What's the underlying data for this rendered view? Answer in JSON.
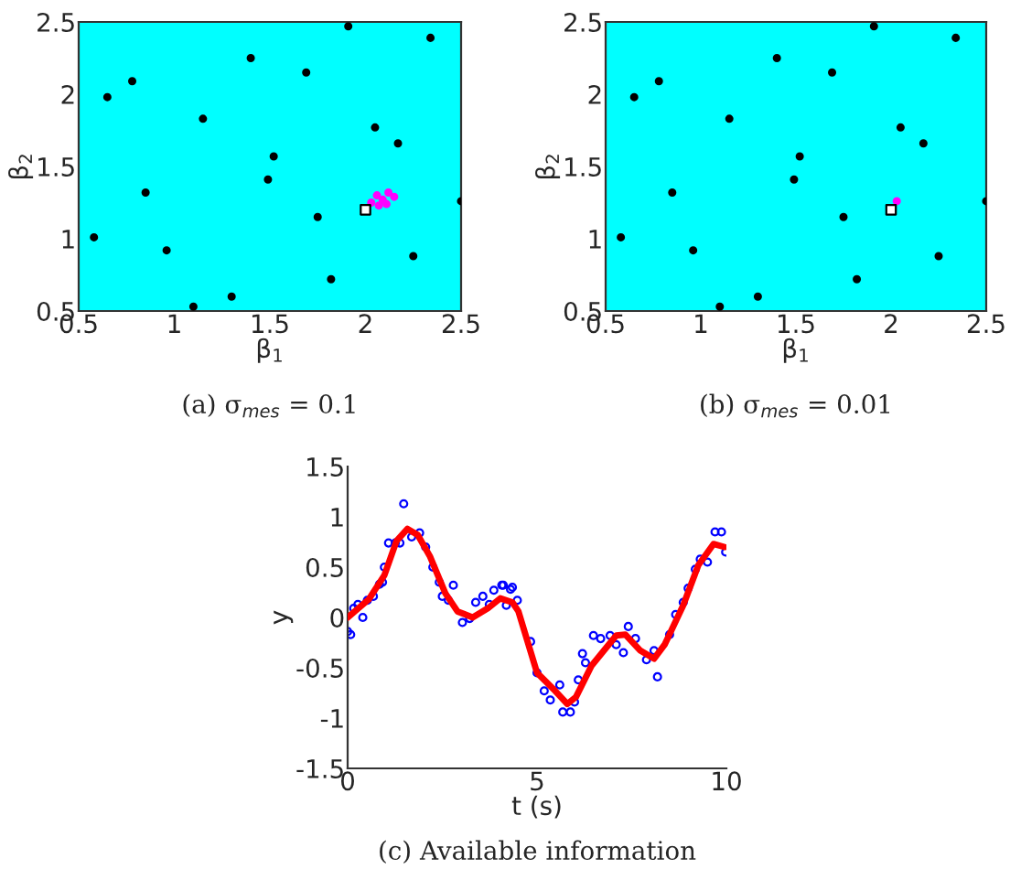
{
  "chart_data": [
    {
      "type": "scatter",
      "xlabel": "β$_{1}$",
      "ylabel": "β$_{2}$",
      "annotations": [
        "(a) σ$_{mes}$ = 0.1"
      ],
      "xlim": [
        0.5,
        2.5
      ],
      "ylim": [
        0.5,
        2.5
      ],
      "xticks": [
        0.5,
        1,
        1.5,
        2,
        2.5
      ],
      "yticks": [
        0.5,
        1,
        1.5,
        2,
        2.5
      ],
      "grid": false,
      "legend": false,
      "series": [
        {
          "color": "#000000",
          "marker": "circle",
          "x": [
            0.58,
            0.65,
            0.78,
            0.85,
            0.96,
            1.1,
            1.15,
            1.3,
            1.4,
            1.49,
            1.52,
            1.69,
            1.75,
            1.82,
            1.91,
            2.05,
            2.17,
            2.25,
            2.34,
            2.5
          ],
          "values": [
            1.01,
            1.98,
            2.09,
            1.32,
            0.92,
            0.53,
            1.83,
            0.6,
            2.25,
            1.41,
            1.57,
            2.15,
            1.15,
            0.72,
            2.47,
            1.77,
            1.66,
            0.88,
            2.39,
            1.26
          ]
        },
        {
          "color": "#ff00ff",
          "marker": "circle",
          "x": [
            2.03,
            2.06,
            2.09,
            2.12,
            2.15,
            2.07,
            2.11
          ],
          "values": [
            1.25,
            1.3,
            1.27,
            1.32,
            1.29,
            1.23,
            1.24
          ]
        },
        {
          "color": "#ffffff",
          "marker": "square",
          "x": [
            2.0
          ],
          "values": [
            1.2
          ]
        }
      ]
    },
    {
      "type": "scatter",
      "xlabel": "β$_{1}$",
      "ylabel": "β$_{2}$",
      "annotations": [
        "(b) σ$_{mes}$ = 0.01"
      ],
      "xlim": [
        0.5,
        2.5
      ],
      "ylim": [
        0.5,
        2.5
      ],
      "xticks": [
        0.5,
        1,
        1.5,
        2,
        2.5
      ],
      "yticks": [
        0.5,
        1,
        1.5,
        2,
        2.5
      ],
      "grid": false,
      "legend": false,
      "series": [
        {
          "color": "#000000",
          "marker": "circle",
          "x": [
            0.58,
            0.65,
            0.78,
            0.85,
            0.96,
            1.1,
            1.15,
            1.3,
            1.4,
            1.49,
            1.52,
            1.69,
            1.75,
            1.82,
            1.91,
            2.05,
            2.17,
            2.25,
            2.34,
            2.5
          ],
          "values": [
            1.01,
            1.98,
            2.09,
            1.32,
            0.92,
            0.53,
            1.83,
            0.6,
            2.25,
            1.41,
            1.57,
            2.15,
            1.15,
            0.72,
            2.47,
            1.77,
            1.66,
            0.88,
            2.39,
            1.26
          ]
        },
        {
          "color": "#ff00ff",
          "marker": "circle",
          "x": [
            2.03
          ],
          "values": [
            1.26
          ]
        },
        {
          "color": "#ffffff",
          "marker": "square",
          "x": [
            2.0
          ],
          "values": [
            1.2
          ]
        }
      ]
    },
    {
      "type": "line",
      "xlabel": "t (s)",
      "ylabel": "y",
      "annotations": [
        "(c) Available information"
      ],
      "xlim": [
        0,
        10
      ],
      "ylim": [
        -1.5,
        1.5
      ],
      "xticks": [
        0,
        5,
        10
      ],
      "yticks": [
        -1.5,
        -1,
        -0.5,
        0,
        0.5,
        1,
        1.5
      ],
      "grid": false,
      "legend": false,
      "series": [
        {
          "type": "scatter",
          "color": "#0000ff",
          "marker": "circle",
          "x": [
            0.0,
            0.08,
            0.16,
            0.27,
            0.4,
            0.52,
            0.68,
            0.84,
            0.92,
            0.97,
            1.08,
            1.26,
            1.38,
            1.48,
            1.69,
            1.9,
            2.06,
            2.25,
            2.42,
            2.5,
            2.66,
            2.79,
            3.03,
            3.22,
            3.38,
            3.57,
            3.74,
            3.86,
            4.07,
            4.11,
            4.19,
            4.3,
            4.35,
            4.48,
            4.83,
            5.0,
            5.19,
            5.35,
            5.6,
            5.68,
            5.88,
            5.99,
            6.09,
            6.2,
            6.28,
            6.49,
            6.68,
            6.93,
            7.09,
            7.28,
            7.41,
            7.6,
            7.89,
            8.09,
            8.18,
            8.5,
            8.66,
            8.86,
            8.99,
            9.18,
            9.31,
            9.5,
            9.7,
            9.87,
            9.98
          ],
          "values": [
            -0.14,
            -0.17,
            0.09,
            0.13,
            0.0,
            0.17,
            0.21,
            0.33,
            0.35,
            0.5,
            0.74,
            0.74,
            0.74,
            1.13,
            0.8,
            0.84,
            0.7,
            0.5,
            0.35,
            0.21,
            0.17,
            0.32,
            -0.05,
            -0.01,
            0.15,
            0.21,
            0.13,
            0.27,
            0.32,
            0.32,
            0.12,
            0.28,
            0.3,
            0.17,
            -0.24,
            -0.55,
            -0.73,
            -0.82,
            -0.67,
            -0.94,
            -0.94,
            -0.84,
            -0.62,
            -0.36,
            -0.45,
            -0.18,
            -0.21,
            -0.18,
            -0.27,
            -0.35,
            -0.09,
            -0.21,
            -0.42,
            -0.33,
            -0.59,
            -0.17,
            0.03,
            0.15,
            0.29,
            0.48,
            0.58,
            0.55,
            0.85,
            0.85,
            0.65
          ]
        },
        {
          "type": "line",
          "color": "#ff0000",
          "marker": "none",
          "line_style": "solid",
          "x": [
            0,
            0.56,
            0.97,
            1.29,
            1.58,
            1.85,
            2.17,
            2.58,
            2.9,
            3.3,
            3.7,
            4.03,
            4.35,
            4.51,
            5.0,
            5.48,
            5.8,
            6.03,
            6.44,
            7.09,
            7.33,
            7.73,
            8.09,
            8.37,
            8.86,
            9.26,
            9.66,
            9.95
          ],
          "values": [
            0,
            0.18,
            0.42,
            0.76,
            0.88,
            0.82,
            0.61,
            0.24,
            0.06,
            0.0,
            0.09,
            0.19,
            0.15,
            0.06,
            -0.55,
            -0.73,
            -0.86,
            -0.79,
            -0.48,
            -0.18,
            -0.17,
            -0.33,
            -0.41,
            -0.27,
            0.12,
            0.52,
            0.73,
            0.7
          ]
        }
      ]
    }
  ]
}
